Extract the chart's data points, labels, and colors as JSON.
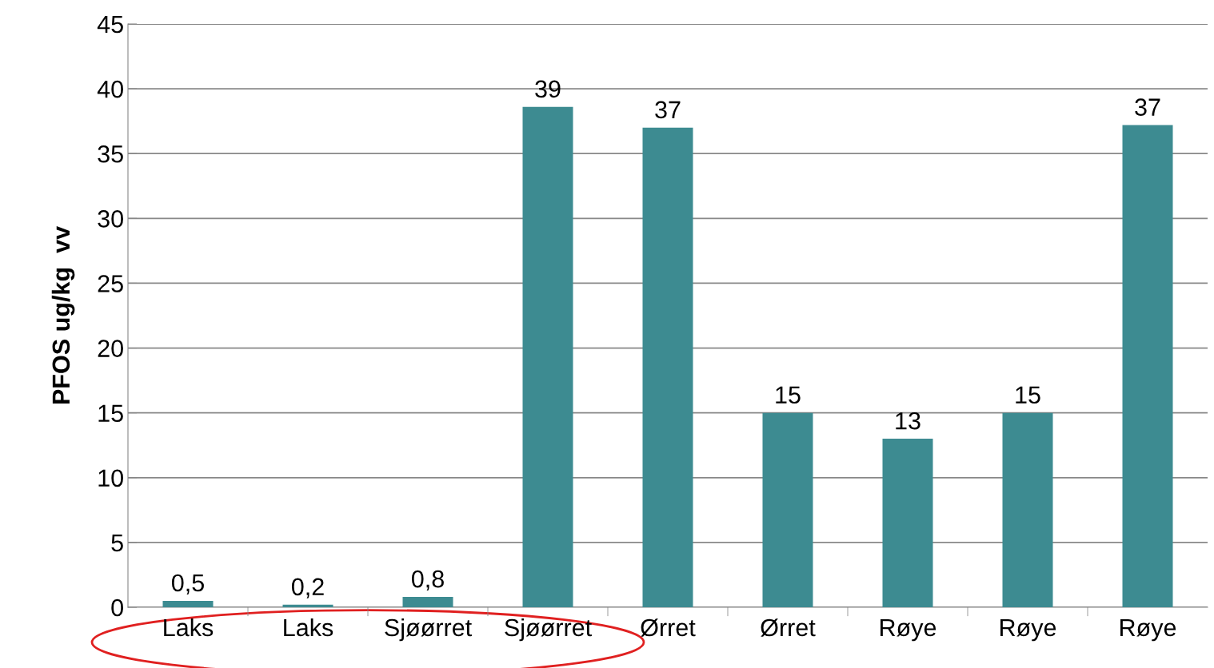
{
  "chart_data": {
    "type": "bar",
    "ylabel": "PFOS ug/kg  vv",
    "categories": [
      "Laks",
      "Laks",
      "Sjøørret",
      "Sjøørret",
      "Ørret",
      "Ørret",
      "Røye",
      "Røye",
      "Røye"
    ],
    "values": [
      0.5,
      0.2,
      0.8,
      38.6,
      37,
      15,
      13,
      15,
      37.2
    ],
    "value_labels": [
      "0,5",
      "0,2",
      "0,8",
      "39",
      "37",
      "15",
      "13",
      "15",
      "37"
    ],
    "color": "#3d8b91",
    "ylim": [
      0,
      45
    ],
    "yticks": [
      0,
      5,
      10,
      15,
      20,
      25,
      30,
      35,
      40,
      45
    ],
    "grid": "y"
  }
}
